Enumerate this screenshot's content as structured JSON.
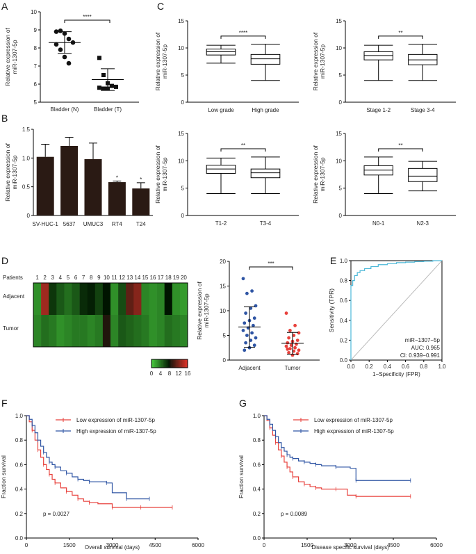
{
  "panels": {
    "A": "A",
    "B": "B",
    "C": "C",
    "D": "D",
    "E": "E",
    "F": "F",
    "G": "G"
  },
  "chart_data": [
    {
      "id": "A",
      "type": "scatter",
      "ylabel_lines": [
        "Relative expression of",
        "miR-1307-5p"
      ],
      "ylim": [
        5,
        10
      ],
      "yticks": [
        5,
        6,
        7,
        8,
        9,
        10
      ],
      "categories": [
        "Bladder (N)",
        "Bladder (T)"
      ],
      "points": [
        [
          8.9,
          8.95,
          8.8,
          8.5,
          8.3,
          8.2,
          7.9,
          7.5,
          7.15
        ],
        [
          7.45,
          6.5,
          6.05,
          5.9,
          5.85,
          5.8,
          5.75,
          5.75
        ]
      ],
      "mean": [
        8.3,
        6.25
      ],
      "sd": [
        0.6,
        0.6
      ],
      "significance": "****"
    },
    {
      "id": "B",
      "type": "bar",
      "ylabel_lines": [
        "Relative expression of",
        "miR-1307-5p"
      ],
      "ylim": [
        0,
        1.5
      ],
      "yticks": [
        "0",
        "0.5",
        "1.0",
        "1.5"
      ],
      "categories": [
        "SV-HUC-1",
        "5637",
        "UMUC3",
        "RT4",
        "T24"
      ],
      "values": [
        1.02,
        1.21,
        0.98,
        0.58,
        0.47
      ],
      "errors": [
        0.22,
        0.15,
        0.28,
        0.02,
        0.1
      ],
      "stars": [
        "",
        "",
        "",
        "*",
        "*"
      ]
    },
    {
      "id": "C1",
      "type": "box",
      "ylabel_lines": [
        "Relative expression of",
        "miR-1307-5p"
      ],
      "ylim": [
        0,
        15
      ],
      "yticks": [
        0,
        5,
        10,
        15
      ],
      "categories": [
        "Low grade",
        "High grade"
      ],
      "boxes": [
        [
          7.2,
          8.7,
          9.3,
          9.8,
          10.5
        ],
        [
          4.0,
          7.0,
          8.0,
          8.8,
          10.7
        ]
      ],
      "significance": "****"
    },
    {
      "id": "C2",
      "type": "box",
      "ylabel_lines": [
        "Relative expression of",
        "miR-1307-5p"
      ],
      "ylim": [
        0,
        15
      ],
      "yticks": [
        0,
        5,
        10,
        15
      ],
      "categories": [
        "Stage 1-2",
        "Stage 3-4"
      ],
      "boxes": [
        [
          4.0,
          7.8,
          8.6,
          9.3,
          10.5
        ],
        [
          4.0,
          6.9,
          7.8,
          8.8,
          10.7
        ]
      ],
      "significance": "**"
    },
    {
      "id": "C3",
      "type": "box",
      "ylabel_lines": [
        "Relative expression of",
        "miR-1307-5p"
      ],
      "ylim": [
        0,
        15
      ],
      "yticks": [
        0,
        5,
        10,
        15
      ],
      "categories": [
        "T1-2",
        "T3-4"
      ],
      "boxes": [
        [
          4.0,
          7.7,
          8.5,
          9.2,
          10.5
        ],
        [
          4.0,
          6.9,
          7.8,
          8.5,
          10.7
        ]
      ],
      "significance": "**"
    },
    {
      "id": "C4",
      "type": "box",
      "ylabel_lines": [
        "Relative expression of",
        "miR-1307-5p"
      ],
      "ylim": [
        0,
        15
      ],
      "yticks": [
        0,
        5,
        10,
        15
      ],
      "categories": [
        "N0-1",
        "N2-3"
      ],
      "boxes": [
        [
          4.0,
          7.4,
          8.3,
          9.1,
          10.7
        ],
        [
          4.5,
          6.2,
          7.2,
          8.6,
          9.9
        ]
      ],
      "significance": "**"
    },
    {
      "id": "D_heatmap",
      "type": "heatmap",
      "row_header": "Patients",
      "patients": [
        "1",
        "2",
        "3",
        "4",
        "5",
        "6",
        "7",
        "8",
        "9",
        "10",
        "11",
        "12",
        "13",
        "14",
        "15",
        "16",
        "17",
        "18",
        "19",
        "20"
      ],
      "rows": [
        "Adjacent",
        "Tumor"
      ],
      "values": [
        [
          2.5,
          13.5,
          6.5,
          5.0,
          4.0,
          5.0,
          7.0,
          7.5,
          6.0,
          8.0,
          2.5,
          5.5,
          11.0,
          12.5,
          3.0,
          2.5,
          3.0,
          8.0,
          2.5,
          2.0
        ],
        [
          3.0,
          4.0,
          3.5,
          2.5,
          3.0,
          3.5,
          3.5,
          3.0,
          3.5,
          8.5,
          3.0,
          5.0,
          4.5,
          4.0,
          3.5,
          2.5,
          3.0,
          4.0,
          3.5,
          3.0
        ]
      ],
      "colorbar_ticks": [
        "0",
        "4",
        "8",
        "12",
        "16"
      ]
    },
    {
      "id": "D_dots",
      "type": "scatter",
      "ylabel_lines": [
        "Relative expression of",
        "miR-1307-5p"
      ],
      "ylim": [
        0,
        20
      ],
      "yticks": [
        0,
        5,
        10,
        15,
        20
      ],
      "categories": [
        "Adjacent",
        "Tumor"
      ],
      "points": [
        [
          16.5,
          14.0,
          13.5,
          11.0,
          10.5,
          9.5,
          8.5,
          8.0,
          7.5,
          7.0,
          6.5,
          6.0,
          5.5,
          5.0,
          4.5,
          4.0,
          3.5,
          3.0,
          2.5,
          2.0
        ],
        [
          9.5,
          7.0,
          6.0,
          5.5,
          5.0,
          4.5,
          4.0,
          3.8,
          3.5,
          3.2,
          3.0,
          2.8,
          2.5,
          2.3,
          2.0,
          1.8,
          1.5,
          1.3,
          1.0,
          2.2
        ]
      ],
      "mean": [
        6.7,
        3.4
      ],
      "sd": [
        4.1,
        2.2
      ],
      "significance": "***"
    },
    {
      "id": "E",
      "type": "line",
      "xlabel": "1−Specificity (FPR)",
      "ylabel": "Sensitivity (TPR)",
      "xlim": [
        0,
        1
      ],
      "ylim": [
        0,
        1
      ],
      "xticks": [
        "0.0",
        "0.2",
        "0.4",
        "0.6",
        "0.8",
        "1.0"
      ],
      "yticks": [
        "0.0",
        "0.2",
        "0.4",
        "0.6",
        "0.8",
        "1.0"
      ],
      "roc": [
        [
          0,
          0
        ],
        [
          0,
          0.3
        ],
        [
          0,
          0.55
        ],
        [
          0,
          0.75
        ],
        [
          0.02,
          0.8
        ],
        [
          0.04,
          0.85
        ],
        [
          0.07,
          0.88
        ],
        [
          0.1,
          0.9
        ],
        [
          0.15,
          0.92
        ],
        [
          0.22,
          0.94
        ],
        [
          0.3,
          0.96
        ],
        [
          0.4,
          0.97
        ],
        [
          0.5,
          0.98
        ],
        [
          0.6,
          0.985
        ],
        [
          0.7,
          0.99
        ],
        [
          0.8,
          0.995
        ],
        [
          0.9,
          1.0
        ],
        [
          1.0,
          1.0
        ]
      ],
      "annotation": [
        "miR−1307−5p",
        "AUC: 0.965",
        "CI: 0.939−0.991"
      ]
    },
    {
      "id": "F",
      "type": "line",
      "xlabel": "Overall survival (days)",
      "ylabel": "Fraction survival",
      "xlim": [
        0,
        6000
      ],
      "ylim": [
        0.0,
        1.0
      ],
      "xticks": [
        "0",
        "1500",
        "3000",
        "4500",
        "6000"
      ],
      "yticks": [
        "0.0",
        "0.2",
        "0.4",
        "0.6",
        "0.8",
        "1.0"
      ],
      "series": [
        {
          "name": "Low expression of miR-1307-5p",
          "color": "#e8413c",
          "x": [
            0,
            100,
            200,
            300,
            400,
            500,
            600,
            700,
            800,
            900,
            1000,
            1200,
            1400,
            1600,
            1800,
            2000,
            2200,
            2500,
            3000,
            3500,
            4000,
            5000,
            5100
          ],
          "y": [
            1.0,
            0.95,
            0.88,
            0.8,
            0.72,
            0.66,
            0.6,
            0.56,
            0.52,
            0.48,
            0.45,
            0.41,
            0.38,
            0.35,
            0.32,
            0.3,
            0.29,
            0.28,
            0.25,
            0.25,
            0.25,
            0.25,
            0.25
          ]
        },
        {
          "name": "High expression of miR-1307-5p",
          "color": "#2f55a4",
          "x": [
            0,
            100,
            200,
            300,
            400,
            500,
            600,
            700,
            800,
            900,
            1000,
            1200,
            1400,
            1600,
            1800,
            2000,
            2200,
            2500,
            2800,
            3000,
            3500,
            4000,
            4300
          ],
          "y": [
            1.0,
            0.97,
            0.92,
            0.86,
            0.8,
            0.75,
            0.7,
            0.66,
            0.62,
            0.6,
            0.58,
            0.55,
            0.53,
            0.5,
            0.48,
            0.47,
            0.46,
            0.46,
            0.45,
            0.37,
            0.32,
            0.32,
            0.32
          ]
        }
      ],
      "pvalue": "p = 0.0027"
    },
    {
      "id": "G",
      "type": "line",
      "xlabel": "Disease specific survival (days)",
      "ylabel": "Fraction survival",
      "xlim": [
        0,
        6000
      ],
      "ylim": [
        0.0,
        1.0
      ],
      "xticks": [
        "0",
        "1500",
        "3000",
        "4500",
        "6000"
      ],
      "yticks": [
        "0.0",
        "0.2",
        "0.4",
        "0.6",
        "0.8",
        "1.0"
      ],
      "series": [
        {
          "name": "Low expression of miR-1307-5p",
          "color": "#e8413c",
          "x": [
            0,
            100,
            200,
            300,
            400,
            500,
            600,
            700,
            800,
            900,
            1000,
            1200,
            1400,
            1600,
            1800,
            2000,
            2500,
            2900,
            3200,
            4000,
            5100
          ],
          "y": [
            1.0,
            0.96,
            0.9,
            0.84,
            0.78,
            0.72,
            0.67,
            0.62,
            0.58,
            0.54,
            0.5,
            0.46,
            0.44,
            0.42,
            0.41,
            0.4,
            0.4,
            0.35,
            0.34,
            0.34,
            0.34
          ]
        },
        {
          "name": "High expression of miR-1307-5p",
          "color": "#2f55a4",
          "x": [
            0,
            100,
            200,
            300,
            400,
            500,
            600,
            700,
            800,
            900,
            1000,
            1200,
            1400,
            1600,
            1800,
            2000,
            2500,
            3000,
            3200,
            4000,
            5100
          ],
          "y": [
            1.0,
            0.97,
            0.93,
            0.88,
            0.83,
            0.78,
            0.74,
            0.71,
            0.68,
            0.66,
            0.65,
            0.63,
            0.62,
            0.61,
            0.6,
            0.59,
            0.58,
            0.57,
            0.47,
            0.47,
            0.47
          ]
        }
      ],
      "pvalue": "p = 0.0089"
    }
  ]
}
